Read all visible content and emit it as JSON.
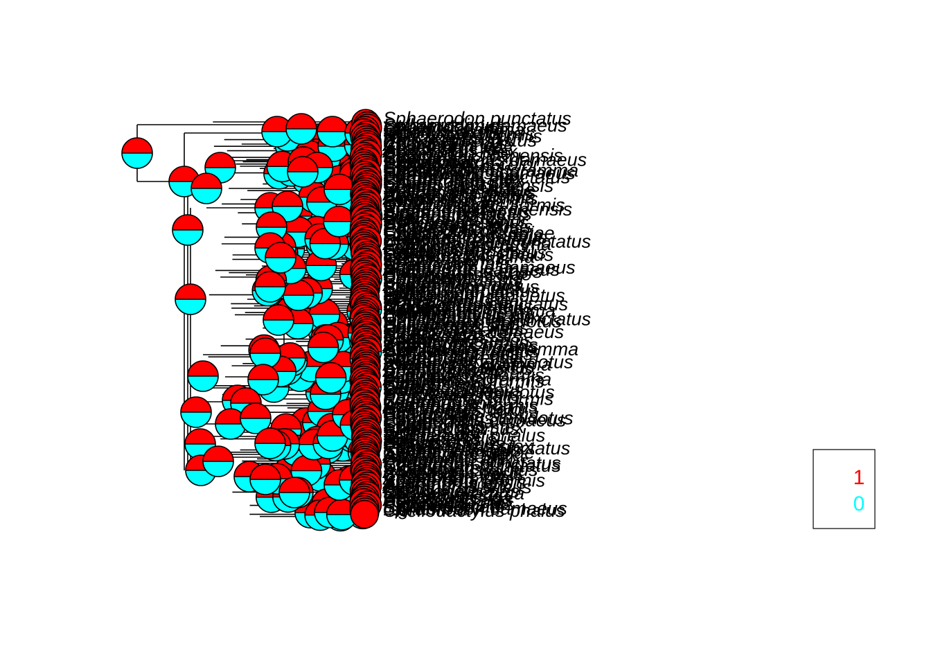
{
  "figure": {
    "type": "ancestral-state-phylogeny",
    "legend": {
      "states": [
        {
          "label": "1",
          "color": "#ff0000"
        },
        {
          "label": "0",
          "color": "#00ffff"
        }
      ]
    },
    "colors": {
      "state_1": "#ff0000",
      "state_0": "#00ffff",
      "branch": "#000000"
    },
    "tip_labels_legible": [
      "Sphaerodon punctatus",
      "Sphaerodon damaeus",
      "...lepidotus",
      "...canensis",
      "...istus",
      "...ina",
      "...pas",
      "...sdiae",
      "...imus",
      "...iformis",
      "...dae",
      "...tus",
      "...ensis",
      "...simus",
      "...stex",
      "...dictus",
      "...ia",
      "...talis",
      "...ani",
      "...talis",
      "...ensis",
      "...color",
      "...sis",
      "...sus",
      "...s",
      "...phalus",
      "...gramma"
    ],
    "tip_count_estimate": 180
  }
}
